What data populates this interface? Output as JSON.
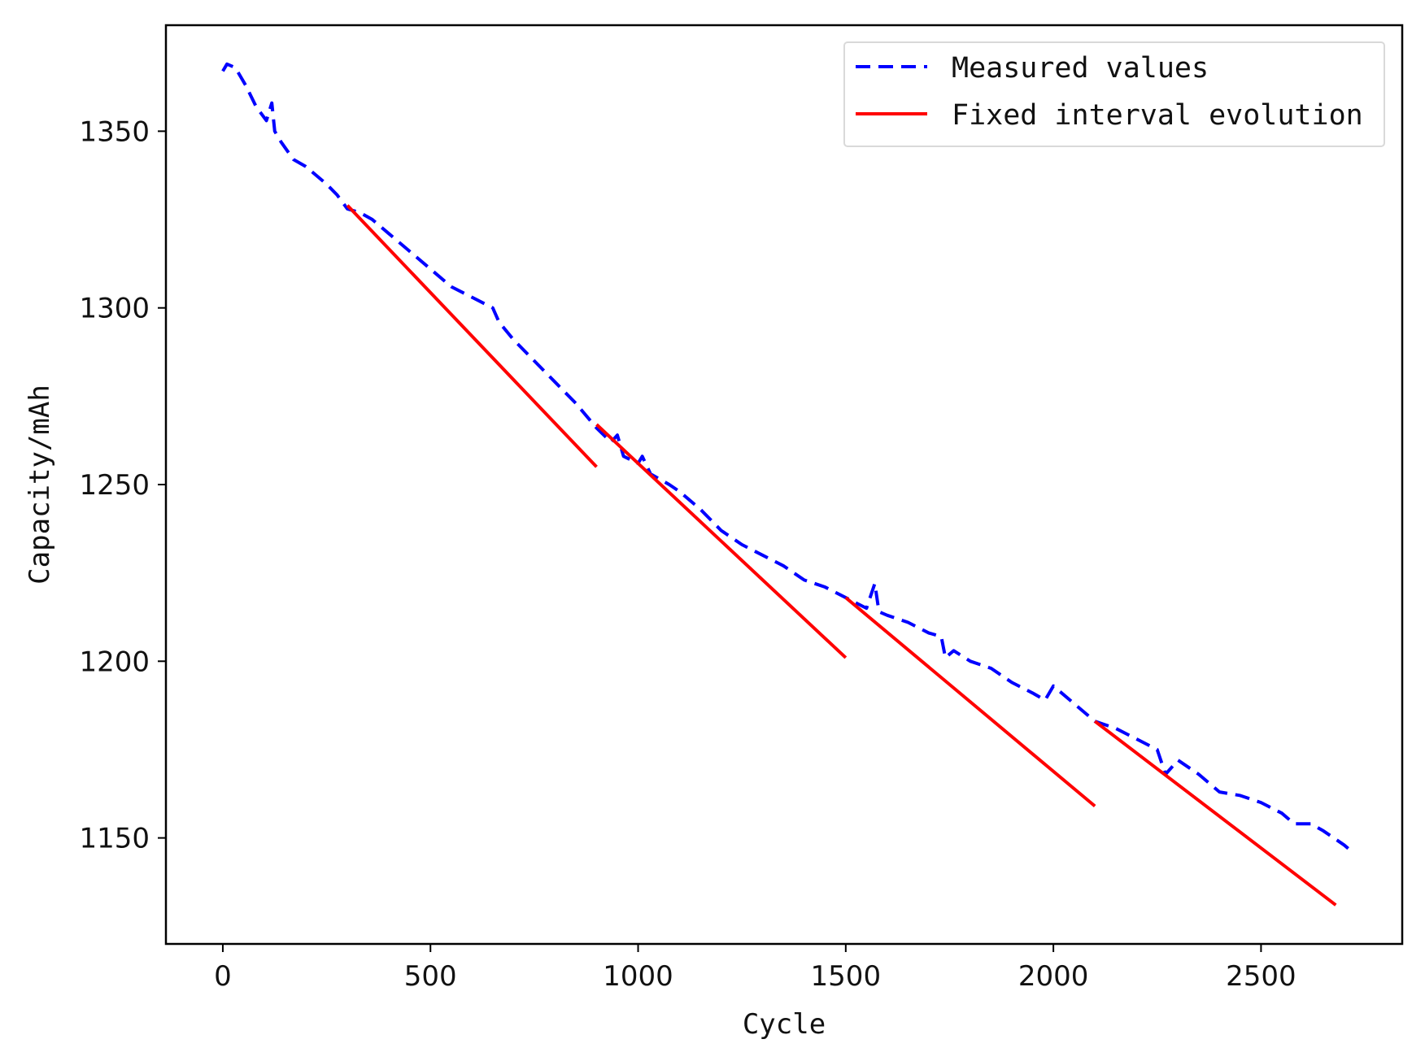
{
  "chart_data": {
    "type": "line",
    "title": "",
    "xlabel": "Cycle",
    "ylabel": "Capacity/mAh",
    "xlim": [
      -137,
      2840
    ],
    "ylim": [
      1120,
      1380
    ],
    "xticks": [
      0,
      500,
      1000,
      1500,
      2000,
      2500
    ],
    "yticks": [
      1150,
      1200,
      1250,
      1300,
      1350
    ],
    "grid": false,
    "legend_position": "top-right",
    "series": [
      {
        "name": "Measured values",
        "style": "dashed",
        "color": "#0000ff",
        "points": [
          [
            0,
            1367
          ],
          [
            10,
            1369
          ],
          [
            30,
            1368
          ],
          [
            55,
            1363
          ],
          [
            80,
            1357
          ],
          [
            105,
            1353
          ],
          [
            118,
            1358
          ],
          [
            125,
            1350
          ],
          [
            140,
            1347
          ],
          [
            170,
            1342
          ],
          [
            200,
            1340
          ],
          [
            230,
            1337
          ],
          [
            250,
            1335
          ],
          [
            275,
            1332
          ],
          [
            300,
            1328
          ],
          [
            330,
            1327
          ],
          [
            360,
            1325
          ],
          [
            400,
            1321
          ],
          [
            450,
            1316
          ],
          [
            500,
            1311
          ],
          [
            550,
            1306
          ],
          [
            600,
            1303
          ],
          [
            650,
            1300
          ],
          [
            665,
            1296
          ],
          [
            700,
            1291
          ],
          [
            750,
            1285
          ],
          [
            800,
            1279
          ],
          [
            850,
            1273
          ],
          [
            900,
            1266
          ],
          [
            935,
            1262
          ],
          [
            950,
            1264
          ],
          [
            965,
            1258
          ],
          [
            1000,
            1256
          ],
          [
            1010,
            1258
          ],
          [
            1030,
            1253
          ],
          [
            1075,
            1250
          ],
          [
            1100,
            1248
          ],
          [
            1150,
            1243
          ],
          [
            1200,
            1237
          ],
          [
            1250,
            1233
          ],
          [
            1300,
            1230
          ],
          [
            1350,
            1227
          ],
          [
            1400,
            1223
          ],
          [
            1450,
            1221
          ],
          [
            1500,
            1218
          ],
          [
            1550,
            1215
          ],
          [
            1570,
            1222
          ],
          [
            1580,
            1214
          ],
          [
            1600,
            1213
          ],
          [
            1650,
            1211
          ],
          [
            1700,
            1208
          ],
          [
            1730,
            1207
          ],
          [
            1740,
            1201
          ],
          [
            1760,
            1203
          ],
          [
            1800,
            1200
          ],
          [
            1850,
            1198
          ],
          [
            1900,
            1194
          ],
          [
            1950,
            1191
          ],
          [
            1980,
            1189
          ],
          [
            2000,
            1193
          ],
          [
            2020,
            1191
          ],
          [
            2050,
            1188
          ],
          [
            2100,
            1183
          ],
          [
            2150,
            1181
          ],
          [
            2200,
            1178
          ],
          [
            2250,
            1175
          ],
          [
            2270,
            1168
          ],
          [
            2300,
            1172
          ],
          [
            2350,
            1168
          ],
          [
            2400,
            1163
          ],
          [
            2450,
            1162
          ],
          [
            2500,
            1160
          ],
          [
            2550,
            1157
          ],
          [
            2580,
            1154
          ],
          [
            2620,
            1154
          ],
          [
            2650,
            1152
          ],
          [
            2700,
            1148
          ],
          [
            2710,
            1147
          ]
        ]
      },
      {
        "name": "Fixed interval evolution",
        "style": "solid",
        "color": "#ff0000",
        "segments": [
          [
            [
              300,
              1329
            ],
            [
              900,
              1255
            ]
          ],
          [
            [
              900,
              1267
            ],
            [
              1500,
              1201
            ]
          ],
          [
            [
              1500,
              1218
            ],
            [
              2100,
              1159
            ]
          ],
          [
            [
              2100,
              1183
            ],
            [
              2680,
              1131
            ]
          ]
        ]
      }
    ]
  }
}
